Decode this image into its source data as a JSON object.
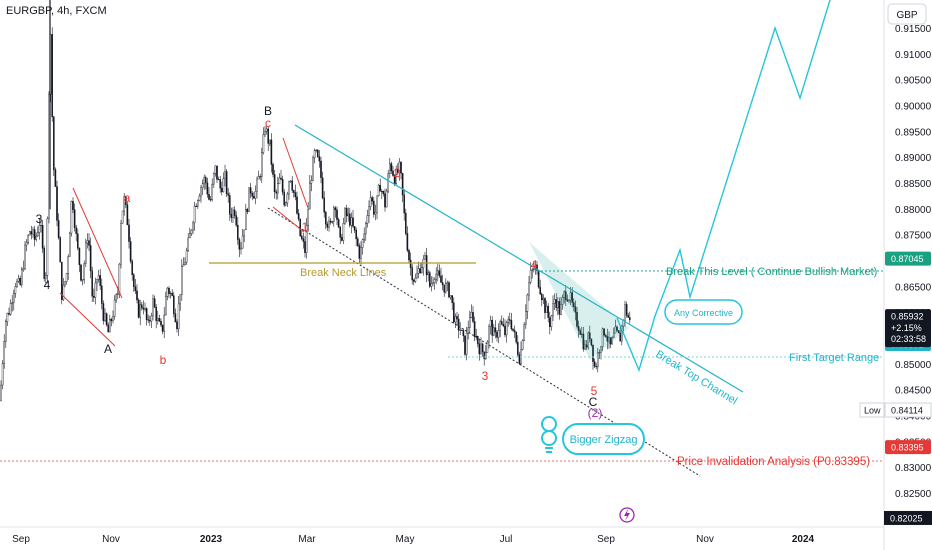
{
  "header": {
    "symbol_title": "EURGBP, 4h, FXCM"
  },
  "currency_button": {
    "label": "GBP"
  },
  "colors": {
    "background": "#ffffff",
    "candle": "#131722",
    "channel": "#22b5c9",
    "projection": "#26c6da",
    "neck": "#b59a2a",
    "red": "#e53935",
    "green_text": "#1aa182",
    "invalidation": "#e53935",
    "purple": "#9c27b0",
    "grid_axis_text": "#131722"
  },
  "chart_data": {
    "type": "candlestick",
    "y_axis": {
      "range": [
        0.8185,
        0.9205
      ],
      "ticks": [
        0.915,
        0.91,
        0.905,
        0.9,
        0.895,
        0.89,
        0.885,
        0.88,
        0.875,
        0.87,
        0.865,
        0.86,
        0.855,
        0.85,
        0.845,
        0.84,
        0.835,
        0.83,
        0.825
      ],
      "tick_labels": [
        "0.91500",
        "0.91000",
        "0.90500",
        "0.90000",
        "0.89500",
        "0.89000",
        "0.88500",
        "0.88000",
        "0.87500",
        "0.87000",
        "0.86500",
        "0.86000",
        "0.85500",
        "0.85000",
        "0.84500",
        "0.84000",
        "0.83500",
        "0.83000",
        "0.82500"
      ]
    },
    "x_axis": {
      "labels": [
        "Sep",
        "Nov",
        "2023",
        "Mar",
        "May",
        "Jul",
        "Sep",
        "Nov",
        "2024"
      ]
    },
    "price_path": [
      [
        0,
        0.843
      ],
      [
        5,
        0.858
      ],
      [
        10,
        0.861
      ],
      [
        15,
        0.866
      ],
      [
        20,
        0.865
      ],
      [
        25,
        0.872
      ],
      [
        30,
        0.876
      ],
      [
        35,
        0.874
      ],
      [
        40,
        0.878
      ],
      [
        45,
        0.866
      ],
      [
        47,
        0.871
      ],
      [
        50,
        0.92
      ],
      [
        53,
        0.89
      ],
      [
        58,
        0.876
      ],
      [
        62,
        0.863
      ],
      [
        67,
        0.868
      ],
      [
        72,
        0.883
      ],
      [
        77,
        0.873
      ],
      [
        82,
        0.866
      ],
      [
        88,
        0.876
      ],
      [
        93,
        0.861
      ],
      [
        98,
        0.868
      ],
      [
        103,
        0.86
      ],
      [
        108,
        0.856
      ],
      [
        113,
        0.86
      ],
      [
        118,
        0.864
      ],
      [
        121,
        0.878
      ],
      [
        124,
        0.882
      ],
      [
        128,
        0.877
      ],
      [
        133,
        0.866
      ],
      [
        138,
        0.86
      ],
      [
        143,
        0.862
      ],
      [
        148,
        0.857
      ],
      [
        153,
        0.862
      ],
      [
        158,
        0.858
      ],
      [
        162,
        0.856
      ],
      [
        167,
        0.865
      ],
      [
        172,
        0.863
      ],
      [
        177,
        0.858
      ],
      [
        182,
        0.868
      ],
      [
        186,
        0.871
      ],
      [
        190,
        0.875
      ],
      [
        195,
        0.881
      ],
      [
        200,
        0.884
      ],
      [
        205,
        0.886
      ],
      [
        210,
        0.881
      ],
      [
        215,
        0.888
      ],
      [
        220,
        0.884
      ],
      [
        225,
        0.886
      ],
      [
        230,
        0.879
      ],
      [
        235,
        0.88
      ],
      [
        240,
        0.872
      ],
      [
        245,
        0.878
      ],
      [
        250,
        0.884
      ],
      [
        255,
        0.883
      ],
      [
        260,
        0.887
      ],
      [
        265,
        0.896
      ],
      [
        270,
        0.892
      ],
      [
        275,
        0.882
      ],
      [
        280,
        0.886
      ],
      [
        285,
        0.881
      ],
      [
        290,
        0.887
      ],
      [
        295,
        0.882
      ],
      [
        300,
        0.875
      ],
      [
        305,
        0.872
      ],
      [
        310,
        0.885
      ],
      [
        315,
        0.891
      ],
      [
        320,
        0.888
      ],
      [
        325,
        0.879
      ],
      [
        330,
        0.876
      ],
      [
        335,
        0.882
      ],
      [
        340,
        0.873
      ],
      [
        345,
        0.879
      ],
      [
        350,
        0.878
      ],
      [
        355,
        0.875
      ],
      [
        360,
        0.871
      ],
      [
        365,
        0.876
      ],
      [
        370,
        0.883
      ],
      [
        375,
        0.879
      ],
      [
        380,
        0.885
      ],
      [
        385,
        0.881
      ],
      [
        390,
        0.889
      ],
      [
        395,
        0.886
      ],
      [
        400,
        0.888
      ],
      [
        405,
        0.877
      ],
      [
        410,
        0.869
      ],
      [
        415,
        0.866
      ],
      [
        420,
        0.869
      ],
      [
        425,
        0.87
      ],
      [
        430,
        0.865
      ],
      [
        435,
        0.868
      ],
      [
        440,
        0.866
      ],
      [
        445,
        0.865
      ],
      [
        450,
        0.864
      ],
      [
        455,
        0.858
      ],
      [
        460,
        0.857
      ],
      [
        465,
        0.853
      ],
      [
        470,
        0.86
      ],
      [
        475,
        0.856
      ],
      [
        480,
        0.853
      ],
      [
        485,
        0.852
      ],
      [
        490,
        0.858
      ],
      [
        495,
        0.855
      ],
      [
        500,
        0.858
      ],
      [
        505,
        0.856
      ],
      [
        510,
        0.859
      ],
      [
        515,
        0.855
      ],
      [
        520,
        0.851
      ],
      [
        525,
        0.86
      ],
      [
        530,
        0.867
      ],
      [
        535,
        0.869
      ],
      [
        540,
        0.865
      ],
      [
        545,
        0.861
      ],
      [
        550,
        0.858
      ],
      [
        555,
        0.863
      ],
      [
        560,
        0.86
      ],
      [
        565,
        0.864
      ],
      [
        570,
        0.863
      ],
      [
        575,
        0.859
      ],
      [
        580,
        0.857
      ],
      [
        585,
        0.853
      ],
      [
        590,
        0.856
      ],
      [
        595,
        0.849
      ],
      [
        600,
        0.854
      ],
      [
        605,
        0.857
      ],
      [
        610,
        0.853
      ],
      [
        615,
        0.856
      ],
      [
        620,
        0.855
      ],
      [
        625,
        0.861
      ],
      [
        630,
        0.858
      ]
    ],
    "low_marker": {
      "label": "Low",
      "value": 0.84114,
      "value_label": "0.84114"
    },
    "axis_bottom_value": {
      "value": 0.82025,
      "label": "0.82025"
    },
    "price_tags": {
      "break_level": {
        "value": 0.87045,
        "label": "0.87045"
      },
      "current": {
        "value": 0.85932,
        "label": "0.85932",
        "change": "+2.15%",
        "countdown": "02:33:58"
      },
      "first_target": {
        "value": 0.85391,
        "label": "0.85391"
      },
      "invalidation": {
        "value": 0.83395,
        "label": "0.83395"
      }
    },
    "annotations": {
      "break_this_level": "Break This Level ( Continue Bullish Market)",
      "first_target_range": "First Target Range",
      "price_invalidation": "Price Invalidation Analysis (P0.83395)",
      "break_neck_lines": "Break Neck Lines",
      "break_top_channel": "Break Top Channel",
      "any_corrective": "Any Corrective",
      "bigger_zigzag": "Bigger Zigzag"
    },
    "wave_labels": [
      {
        "id": "w3-black",
        "text": "3",
        "color": "black"
      },
      {
        "id": "w4-black",
        "text": "4",
        "color": "black"
      },
      {
        "id": "wA",
        "text": "A",
        "color": "black"
      },
      {
        "id": "wa",
        "text": "a",
        "color": "red"
      },
      {
        "id": "wb",
        "text": "b",
        "color": "red"
      },
      {
        "id": "wB",
        "text": "B",
        "color": "black"
      },
      {
        "id": "wc",
        "text": "c",
        "color": "red"
      },
      {
        "id": "w1",
        "text": "1",
        "color": "red"
      },
      {
        "id": "w2",
        "text": "2",
        "color": "red"
      },
      {
        "id": "w3",
        "text": "3",
        "color": "red"
      },
      {
        "id": "w4",
        "text": "4",
        "color": "red"
      },
      {
        "id": "w5",
        "text": "5",
        "color": "red"
      },
      {
        "id": "wC",
        "text": "C",
        "color": "black"
      },
      {
        "id": "w2p",
        "text": "(2)",
        "color": "purple"
      }
    ],
    "icons": [
      "lightbulb-icon",
      "lightning-icon"
    ]
  }
}
